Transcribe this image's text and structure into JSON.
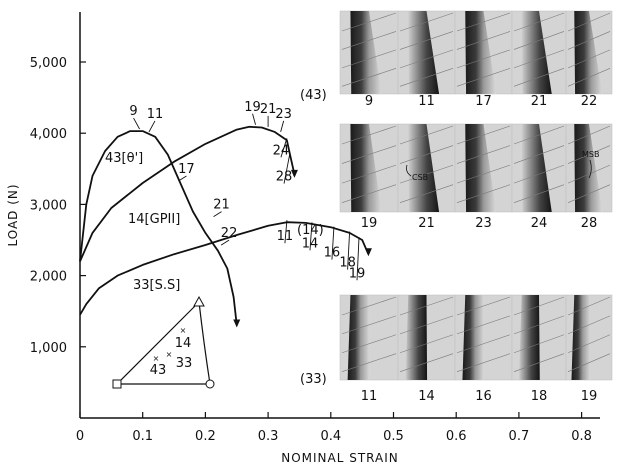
{
  "chart_data": {
    "type": "line",
    "xlabel": "NOMINAL STRAIN",
    "ylabel": "LOAD (N)",
    "xlim": [
      0,
      0.85
    ],
    "ylim": [
      0,
      5600
    ],
    "x_ticks": [
      "0",
      "0.1",
      "0.2",
      "0.3",
      "0.4",
      "0.5",
      "0.6",
      "0.7",
      "0.8"
    ],
    "x_tick_values": [
      0,
      0.1,
      0.2,
      0.3,
      0.4,
      0.5,
      0.6,
      0.7,
      0.8
    ],
    "y_ticks": [
      "1,000",
      "2,000",
      "3,000",
      "4,000",
      "5,000"
    ],
    "y_tick_values": [
      1000,
      2000,
      3000,
      4000,
      5000
    ],
    "grid": false,
    "series": [
      {
        "name": "43[θ']",
        "points": [
          [
            0,
            2200
          ],
          [
            0.01,
            3000
          ],
          [
            0.02,
            3400
          ],
          [
            0.04,
            3750
          ],
          [
            0.06,
            3950
          ],
          [
            0.08,
            4030
          ],
          [
            0.1,
            4030
          ],
          [
            0.12,
            3950
          ],
          [
            0.14,
            3700
          ],
          [
            0.16,
            3300
          ],
          [
            0.18,
            2900
          ],
          [
            0.2,
            2600
          ],
          [
            0.22,
            2350
          ],
          [
            0.235,
            2100
          ],
          [
            0.245,
            1700
          ],
          [
            0.25,
            1300
          ]
        ],
        "markers": [
          {
            "label": "9",
            "x": 0.095,
            "y": 4030
          },
          {
            "label": "11",
            "x": 0.11,
            "y": 3990
          },
          {
            "label": "17",
            "x": 0.157,
            "y": 3300
          },
          {
            "label": "21",
            "x": 0.213,
            "y": 2800
          },
          {
            "label": "22",
            "x": 0.225,
            "y": 2400
          }
        ]
      },
      {
        "name": "14[GPII]",
        "points": [
          [
            0,
            2200
          ],
          [
            0.02,
            2600
          ],
          [
            0.05,
            2950
          ],
          [
            0.1,
            3300
          ],
          [
            0.15,
            3600
          ],
          [
            0.2,
            3850
          ],
          [
            0.25,
            4050
          ],
          [
            0.27,
            4090
          ],
          [
            0.29,
            4080
          ],
          [
            0.31,
            4020
          ],
          [
            0.33,
            3900
          ],
          [
            0.335,
            3700
          ],
          [
            0.34,
            3500
          ],
          [
            0.342,
            3400
          ]
        ],
        "markers": [
          {
            "label": "19",
            "x": 0.28,
            "y": 4090
          },
          {
            "label": "21",
            "x": 0.3,
            "y": 4060
          },
          {
            "label": "23",
            "x": 0.32,
            "y": 3990
          },
          {
            "label": "24",
            "x": 0.33,
            "y": 3900
          },
          {
            "label": "28",
            "x": 0.335,
            "y": 3700
          }
        ]
      },
      {
        "name": "33[S.S]",
        "points": [
          [
            0,
            1450
          ],
          [
            0.01,
            1600
          ],
          [
            0.03,
            1820
          ],
          [
            0.06,
            2000
          ],
          [
            0.1,
            2150
          ],
          [
            0.15,
            2300
          ],
          [
            0.2,
            2430
          ],
          [
            0.25,
            2570
          ],
          [
            0.3,
            2700
          ],
          [
            0.33,
            2750
          ],
          [
            0.36,
            2740
          ],
          [
            0.4,
            2680
          ],
          [
            0.43,
            2600
          ],
          [
            0.45,
            2500
          ],
          [
            0.46,
            2300
          ]
        ],
        "markers": [
          {
            "label": "11",
            "x": 0.33,
            "y": 2750
          },
          {
            "label": "14",
            "x": 0.37,
            "y": 2720
          },
          {
            "label": "16",
            "x": 0.405,
            "y": 2660
          },
          {
            "label": "18",
            "x": 0.43,
            "y": 2590
          },
          {
            "label": "19",
            "x": 0.445,
            "y": 2510
          }
        ]
      }
    ],
    "annotations": [
      "(14)",
      "CSB",
      "MSB",
      "14",
      "43",
      "33"
    ],
    "micrograph_rows": [
      {
        "label": "(43)",
        "frames": [
          "9",
          "11",
          "17",
          "21",
          "22"
        ]
      },
      {
        "label": "",
        "frames": [
          "19",
          "21",
          "23",
          "24",
          "28"
        ]
      },
      {
        "label": "(33)",
        "frames": [
          "11",
          "14",
          "16",
          "18",
          "19"
        ]
      }
    ],
    "colors": {
      "line": "#111111",
      "background": "#ffffff"
    }
  }
}
